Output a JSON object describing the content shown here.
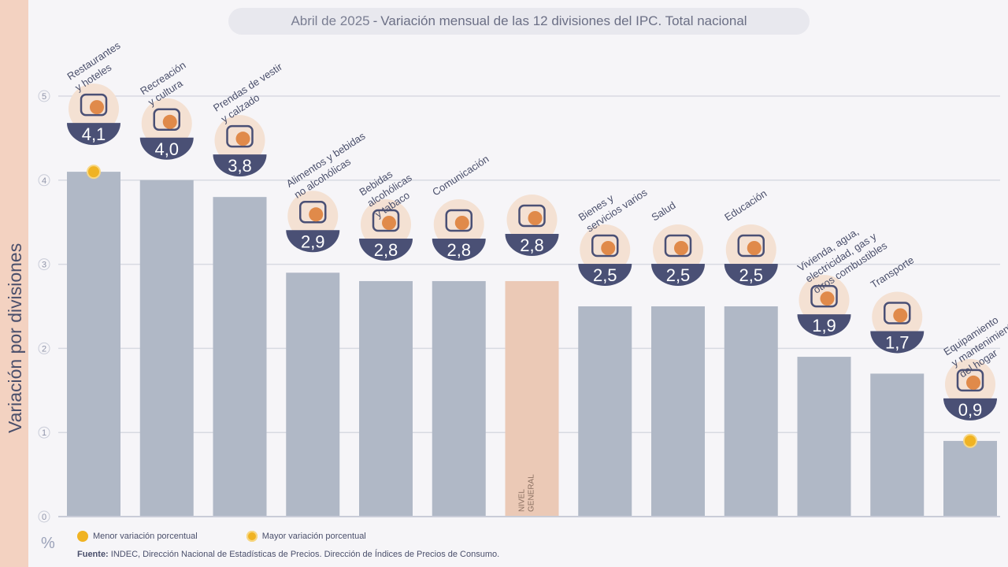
{
  "title": {
    "date": "Abril de 2025",
    "separator": "-",
    "main": "Variación mensual de las 12 divisiones del IPC. Total nacional"
  },
  "y_axis_label": "Variación por divisiones",
  "unit_symbol": "%",
  "legend": {
    "min_label": "Menor variación porcentual",
    "max_label": "Mayor variación porcentual"
  },
  "source": {
    "label": "Fuente:",
    "text": "INDEC, Dirección Nacional de Estadísticas de Precios. Dirección de Índices de Precios de Consumo."
  },
  "colors": {
    "bar": "#b0b8c6",
    "bar_general": "#ebc9b6",
    "badge": "#4a5075",
    "accent": "#f0b323",
    "grid": "#d8dae2",
    "icon_orange": "#e08a4a"
  },
  "chart_data": {
    "type": "bar",
    "categories": [
      "Restaurantes y hoteles",
      "Recreación y cultura",
      "Prendas de vestir y calzado",
      "Alimentos y bebidas no alcohólicas",
      "Bebidas alcohólicas y tabaco",
      "Comunicación",
      "NIVEL GENERAL",
      "Bienes y servicios varios",
      "Salud",
      "Educación",
      "Vivienda, agua, electricidad, gas y otros combustibles",
      "Transporte",
      "Equipamiento y mantenimiento del hogar"
    ],
    "values": [
      4.1,
      4.0,
      3.8,
      2.9,
      2.8,
      2.8,
      2.8,
      2.5,
      2.5,
      2.5,
      1.9,
      1.7,
      0.9
    ],
    "value_labels": [
      "4,1",
      "4,0",
      "3,8",
      "2,9",
      "2,8",
      "2,8",
      "2,8",
      "2,5",
      "2,5",
      "2,5",
      "1,9",
      "1,7",
      "0,9"
    ],
    "rotated_labels": [
      [
        "Restaurantes",
        "y hoteles"
      ],
      [
        "Recreación",
        "y cultura"
      ],
      [
        "Prendas de vestir",
        "y calzado"
      ],
      [
        "Alimentos y bebidas",
        "no alcohólicas"
      ],
      [
        "Bebidas",
        "alcohólicas",
        "y tabaco"
      ],
      [
        "Comunicación"
      ],
      [],
      [
        "Bienes y",
        "servicios varios"
      ],
      [
        "Salud"
      ],
      [
        "Educación"
      ],
      [
        "Vivienda, agua,",
        "electricidad, gas y",
        "otros combustibles"
      ],
      [
        "Transporte"
      ],
      [
        "Equipamiento",
        "y mantenimiento",
        "del hogar"
      ]
    ],
    "bar_inner_label": [
      "NIVEL",
      "GENERAL"
    ],
    "highlight_index": 6,
    "max_marker_index": 0,
    "min_marker_index": 12,
    "icons": [
      "plate-cutlery-icon",
      "umbrella-sun-icon",
      "tshirt-shoe-icon",
      "food-basket-icon",
      "wine-bottle-icon",
      "smartphone-icon",
      "shopping-bag-icon",
      "comb-scissors-icon",
      "first-aid-icon",
      "notebook-icon",
      "lightbulb-plug-icon",
      "bus-car-icon",
      "air-conditioner-icon"
    ],
    "ylim": [
      0,
      5
    ],
    "yticks": [
      0,
      1,
      2,
      3,
      4,
      5
    ],
    "grid": true
  }
}
